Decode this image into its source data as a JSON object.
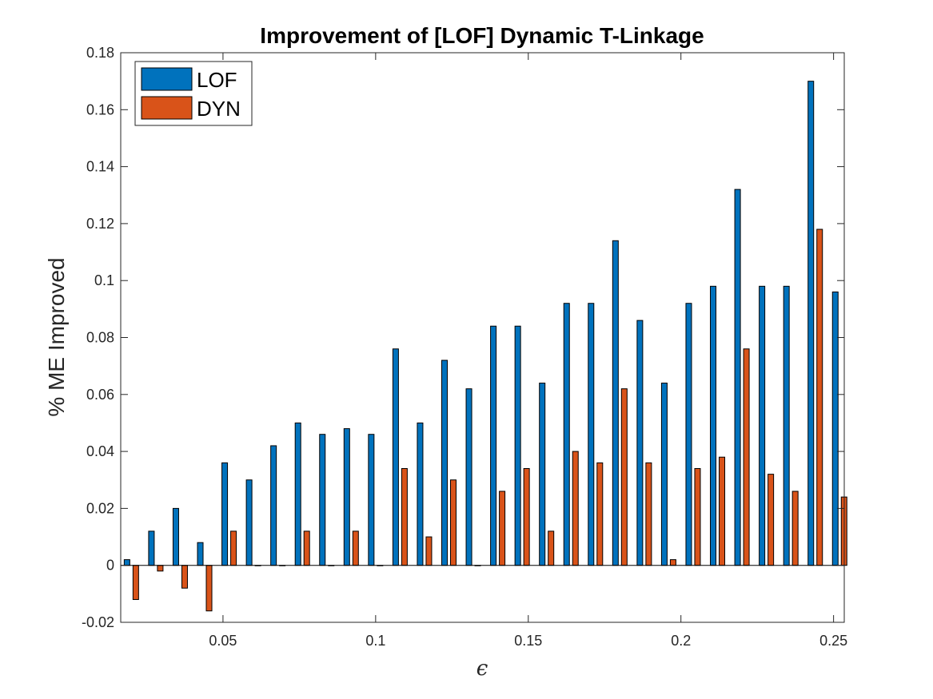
{
  "chart_data": {
    "type": "bar",
    "title": "Improvement of [LOF] Dynamic T-Linkage",
    "xlabel": "ϵ",
    "ylabel": "% ME Improved",
    "xlim": [
      0.0165,
      0.2535
    ],
    "ylim": [
      -0.02,
      0.18
    ],
    "xticks": [
      0.05,
      0.1,
      0.15,
      0.2,
      0.25
    ],
    "xtick_labels": [
      "0.05",
      "0.1",
      "0.15",
      "0.2",
      "0.25"
    ],
    "yticks": [
      -0.02,
      0,
      0.02,
      0.04,
      0.06,
      0.08,
      0.1,
      0.12,
      0.14,
      0.16,
      0.18
    ],
    "ytick_labels": [
      "-0.02",
      "0",
      "0.02",
      "0.04",
      "0.06",
      "0.08",
      "0.1",
      "0.12",
      "0.14",
      "0.16",
      "0.18"
    ],
    "grid": false,
    "legend_position": "top-left",
    "x": [
      0.02,
      0.028,
      0.036,
      0.044,
      0.052,
      0.06,
      0.068,
      0.076,
      0.084,
      0.092,
      0.1,
      0.108,
      0.116,
      0.124,
      0.132,
      0.14,
      0.148,
      0.156,
      0.164,
      0.172,
      0.18,
      0.188,
      0.196,
      0.204,
      0.212,
      0.22,
      0.228,
      0.236,
      0.244,
      0.252
    ],
    "series": [
      {
        "name": "LOF",
        "color": "#0072BD",
        "values": [
          0.002,
          0.012,
          0.02,
          0.008,
          0.036,
          0.03,
          0.042,
          0.05,
          0.046,
          0.048,
          0.046,
          0.076,
          0.05,
          0.072,
          0.062,
          0.084,
          0.084,
          0.064,
          0.092,
          0.092,
          0.114,
          0.086,
          0.064,
          0.092,
          0.098,
          0.132,
          0.098,
          0.098,
          0.17,
          0.096
        ]
      },
      {
        "name": "DYN",
        "color": "#D95319",
        "values": [
          -0.012,
          -0.002,
          -0.008,
          -0.016,
          0.012,
          0,
          0,
          0.012,
          0,
          0.012,
          0,
          0.034,
          0.01,
          0.03,
          0,
          0.026,
          0.034,
          0.012,
          0.04,
          0.036,
          0.062,
          0.036,
          0.002,
          0.034,
          0.038,
          0.076,
          0.032,
          0.026,
          0.118,
          0.024
        ]
      }
    ]
  }
}
